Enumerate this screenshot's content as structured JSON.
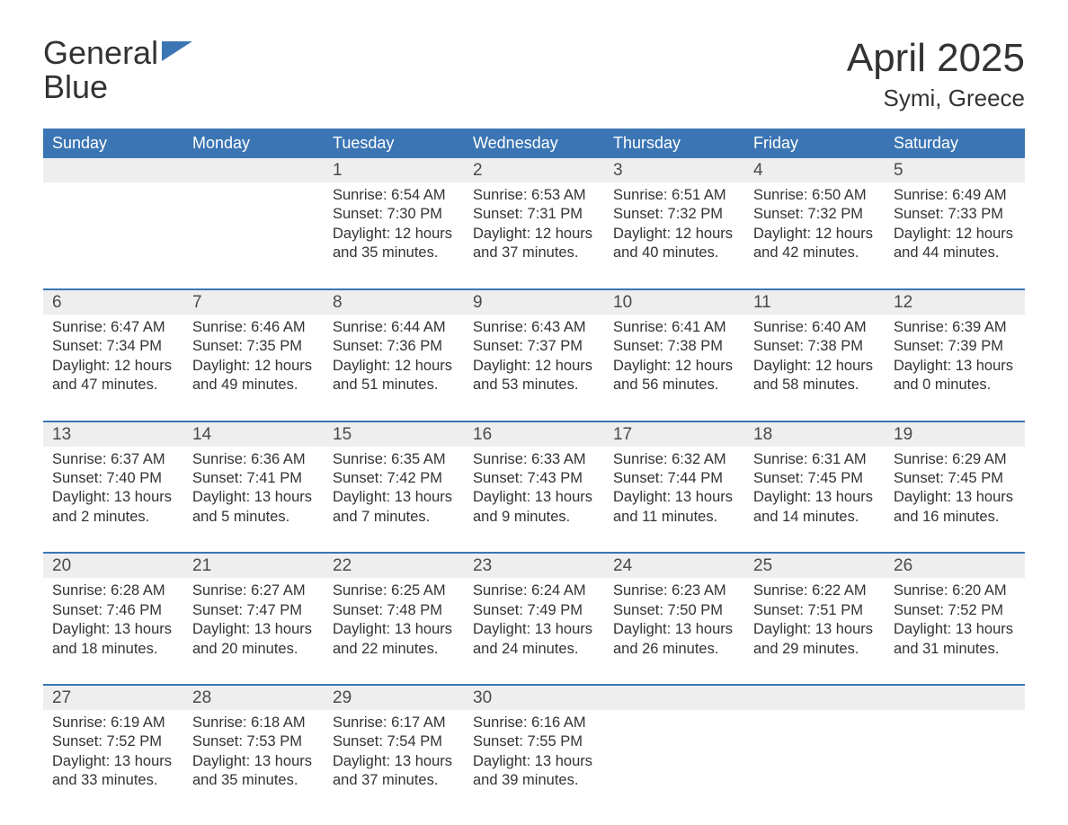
{
  "logo": {
    "line1": "General",
    "line2": "Blue"
  },
  "title": "April 2025",
  "location": "Symi, Greece",
  "header_bg": "#3b75b3",
  "header_text_color": "#ffffff",
  "daynum_bg": "#eeeeee",
  "rule_color": "#3b75b3",
  "text_color": "#333333",
  "font_family": "Arial, Helvetica, sans-serif",
  "title_fontsize": 44,
  "location_fontsize": 26,
  "header_fontsize": 18,
  "daynum_fontsize": 19,
  "body_fontsize": 16.5,
  "days_of_week": [
    "Sunday",
    "Monday",
    "Tuesday",
    "Wednesday",
    "Thursday",
    "Friday",
    "Saturday"
  ],
  "weeks": [
    [
      null,
      null,
      {
        "n": "1",
        "sunrise": "Sunrise: 6:54 AM",
        "sunset": "Sunset: 7:30 PM",
        "day1": "Daylight: 12 hours",
        "day2": "and 35 minutes."
      },
      {
        "n": "2",
        "sunrise": "Sunrise: 6:53 AM",
        "sunset": "Sunset: 7:31 PM",
        "day1": "Daylight: 12 hours",
        "day2": "and 37 minutes."
      },
      {
        "n": "3",
        "sunrise": "Sunrise: 6:51 AM",
        "sunset": "Sunset: 7:32 PM",
        "day1": "Daylight: 12 hours",
        "day2": "and 40 minutes."
      },
      {
        "n": "4",
        "sunrise": "Sunrise: 6:50 AM",
        "sunset": "Sunset: 7:32 PM",
        "day1": "Daylight: 12 hours",
        "day2": "and 42 minutes."
      },
      {
        "n": "5",
        "sunrise": "Sunrise: 6:49 AM",
        "sunset": "Sunset: 7:33 PM",
        "day1": "Daylight: 12 hours",
        "day2": "and 44 minutes."
      }
    ],
    [
      {
        "n": "6",
        "sunrise": "Sunrise: 6:47 AM",
        "sunset": "Sunset: 7:34 PM",
        "day1": "Daylight: 12 hours",
        "day2": "and 47 minutes."
      },
      {
        "n": "7",
        "sunrise": "Sunrise: 6:46 AM",
        "sunset": "Sunset: 7:35 PM",
        "day1": "Daylight: 12 hours",
        "day2": "and 49 minutes."
      },
      {
        "n": "8",
        "sunrise": "Sunrise: 6:44 AM",
        "sunset": "Sunset: 7:36 PM",
        "day1": "Daylight: 12 hours",
        "day2": "and 51 minutes."
      },
      {
        "n": "9",
        "sunrise": "Sunrise: 6:43 AM",
        "sunset": "Sunset: 7:37 PM",
        "day1": "Daylight: 12 hours",
        "day2": "and 53 minutes."
      },
      {
        "n": "10",
        "sunrise": "Sunrise: 6:41 AM",
        "sunset": "Sunset: 7:38 PM",
        "day1": "Daylight: 12 hours",
        "day2": "and 56 minutes."
      },
      {
        "n": "11",
        "sunrise": "Sunrise: 6:40 AM",
        "sunset": "Sunset: 7:38 PM",
        "day1": "Daylight: 12 hours",
        "day2": "and 58 minutes."
      },
      {
        "n": "12",
        "sunrise": "Sunrise: 6:39 AM",
        "sunset": "Sunset: 7:39 PM",
        "day1": "Daylight: 13 hours",
        "day2": "and 0 minutes."
      }
    ],
    [
      {
        "n": "13",
        "sunrise": "Sunrise: 6:37 AM",
        "sunset": "Sunset: 7:40 PM",
        "day1": "Daylight: 13 hours",
        "day2": "and 2 minutes."
      },
      {
        "n": "14",
        "sunrise": "Sunrise: 6:36 AM",
        "sunset": "Sunset: 7:41 PM",
        "day1": "Daylight: 13 hours",
        "day2": "and 5 minutes."
      },
      {
        "n": "15",
        "sunrise": "Sunrise: 6:35 AM",
        "sunset": "Sunset: 7:42 PM",
        "day1": "Daylight: 13 hours",
        "day2": "and 7 minutes."
      },
      {
        "n": "16",
        "sunrise": "Sunrise: 6:33 AM",
        "sunset": "Sunset: 7:43 PM",
        "day1": "Daylight: 13 hours",
        "day2": "and 9 minutes."
      },
      {
        "n": "17",
        "sunrise": "Sunrise: 6:32 AM",
        "sunset": "Sunset: 7:44 PM",
        "day1": "Daylight: 13 hours",
        "day2": "and 11 minutes."
      },
      {
        "n": "18",
        "sunrise": "Sunrise: 6:31 AM",
        "sunset": "Sunset: 7:45 PM",
        "day1": "Daylight: 13 hours",
        "day2": "and 14 minutes."
      },
      {
        "n": "19",
        "sunrise": "Sunrise: 6:29 AM",
        "sunset": "Sunset: 7:45 PM",
        "day1": "Daylight: 13 hours",
        "day2": "and 16 minutes."
      }
    ],
    [
      {
        "n": "20",
        "sunrise": "Sunrise: 6:28 AM",
        "sunset": "Sunset: 7:46 PM",
        "day1": "Daylight: 13 hours",
        "day2": "and 18 minutes."
      },
      {
        "n": "21",
        "sunrise": "Sunrise: 6:27 AM",
        "sunset": "Sunset: 7:47 PM",
        "day1": "Daylight: 13 hours",
        "day2": "and 20 minutes."
      },
      {
        "n": "22",
        "sunrise": "Sunrise: 6:25 AM",
        "sunset": "Sunset: 7:48 PM",
        "day1": "Daylight: 13 hours",
        "day2": "and 22 minutes."
      },
      {
        "n": "23",
        "sunrise": "Sunrise: 6:24 AM",
        "sunset": "Sunset: 7:49 PM",
        "day1": "Daylight: 13 hours",
        "day2": "and 24 minutes."
      },
      {
        "n": "24",
        "sunrise": "Sunrise: 6:23 AM",
        "sunset": "Sunset: 7:50 PM",
        "day1": "Daylight: 13 hours",
        "day2": "and 26 minutes."
      },
      {
        "n": "25",
        "sunrise": "Sunrise: 6:22 AM",
        "sunset": "Sunset: 7:51 PM",
        "day1": "Daylight: 13 hours",
        "day2": "and 29 minutes."
      },
      {
        "n": "26",
        "sunrise": "Sunrise: 6:20 AM",
        "sunset": "Sunset: 7:52 PM",
        "day1": "Daylight: 13 hours",
        "day2": "and 31 minutes."
      }
    ],
    [
      {
        "n": "27",
        "sunrise": "Sunrise: 6:19 AM",
        "sunset": "Sunset: 7:52 PM",
        "day1": "Daylight: 13 hours",
        "day2": "and 33 minutes."
      },
      {
        "n": "28",
        "sunrise": "Sunrise: 6:18 AM",
        "sunset": "Sunset: 7:53 PM",
        "day1": "Daylight: 13 hours",
        "day2": "and 35 minutes."
      },
      {
        "n": "29",
        "sunrise": "Sunrise: 6:17 AM",
        "sunset": "Sunset: 7:54 PM",
        "day1": "Daylight: 13 hours",
        "day2": "and 37 minutes."
      },
      {
        "n": "30",
        "sunrise": "Sunrise: 6:16 AM",
        "sunset": "Sunset: 7:55 PM",
        "day1": "Daylight: 13 hours",
        "day2": "and 39 minutes."
      },
      null,
      null,
      null
    ]
  ]
}
